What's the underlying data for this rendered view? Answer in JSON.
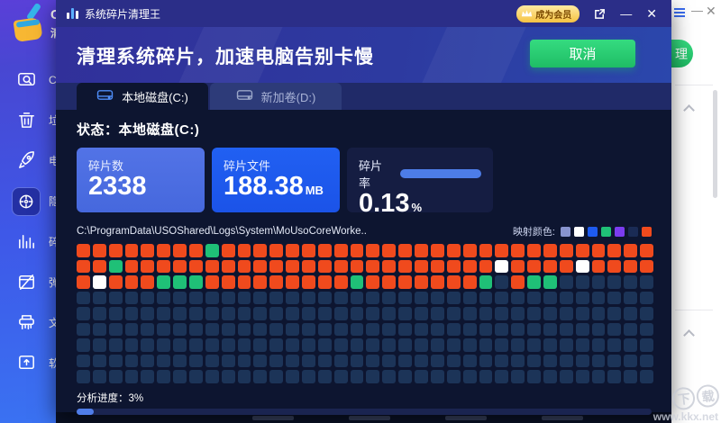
{
  "window": {
    "title": "系统碎片清理王",
    "vip_label": "成为会员",
    "minimize_glyph": "—",
    "close_glyph": "✕"
  },
  "header": {
    "title": "清理系统碎片，加速电脑告别卡慢",
    "cancel_label": "取消"
  },
  "tabs": [
    {
      "label": "本地磁盘(C:)",
      "active": true
    },
    {
      "label": "新加卷(D:)",
      "active": false
    }
  ],
  "status_text": "状态：本地磁盘(C:)",
  "stats": [
    {
      "label": "碎片数",
      "value": "2338",
      "unit": ""
    },
    {
      "label": "碎片文件",
      "value": "188.38",
      "unit": "MB"
    },
    {
      "label": "碎片率",
      "value": "0.13",
      "unit": "%"
    }
  ],
  "scan": {
    "path": "C:\\ProgramData\\USOShared\\Logs\\System\\MoUsoCoreWorke..",
    "legend_label": "映射颜色:",
    "legend_colors": [
      "#8894cf",
      "#ffffff",
      "#1e5bf0",
      "#1fc077",
      "#7b3cf0",
      "#1a2b55",
      "#f04a1d"
    ],
    "progress_label": "分析进度：3%",
    "progress_percent": 3
  },
  "fragment_map": {
    "columns": 36,
    "palette": {
      "O": "#f04a1d",
      "G": "#1fc077",
      "W": "#ffffff",
      "N": "#1c3458"
    },
    "rows": [
      "OOOOOOOOGOOOOOOOOOOOOOOOOOOOOOOOOOOO",
      "OOGOOOOOOOOOOOOOOOOOOOOOOOWOOOOWOOOO",
      "OWOOOGGGOOOOOOOOOGOOOOOOOGNOGGNNNNNN",
      "NNNNNNNNNNNNNNNNNNNNNNNNNNNNNNNNNNNN",
      "NNNNNNNNNNNNNNNNNNNNNNNNNNNNNNNNNNNN",
      "NNNNNNNNNNNNNNNNNNNNNNNNNNNNNNNNNNNN",
      "NNNNNNNNNNNNNNNNNNNNNNNNNNNNNNNNNNNN",
      "NNNNNNNNNNNNNNNNNNNNNNNNNNNNNNNNNNNN",
      "NNNNNNNNNNNNNNNNNNNNNNNNNNNNNNNNNNNN"
    ]
  },
  "sidebar": {
    "logo_chars": [
      "C",
      "清"
    ],
    "items": [
      {
        "icon": "disk-scan-icon",
        "label": "C",
        "selected": false
      },
      {
        "icon": "trash-icon",
        "label": "垃",
        "selected": false
      },
      {
        "icon": "rocket-icon",
        "label": "电",
        "selected": false
      },
      {
        "icon": "privacy-icon",
        "label": "隐",
        "selected": true
      },
      {
        "icon": "defrag-bars-icon",
        "label": "碎",
        "selected": false
      },
      {
        "icon": "popup-block-icon",
        "label": "弹",
        "selected": false
      },
      {
        "icon": "shredder-icon",
        "label": "文",
        "selected": false
      },
      {
        "icon": "software-icon",
        "label": "软",
        "selected": false
      }
    ]
  },
  "right_panel": {
    "partial_button_label": "理",
    "minimize_glyph": "—",
    "close_glyph": "✕"
  },
  "watermark": {
    "chars": [
      "下",
      "载"
    ],
    "url": "www.kkx.net"
  }
}
